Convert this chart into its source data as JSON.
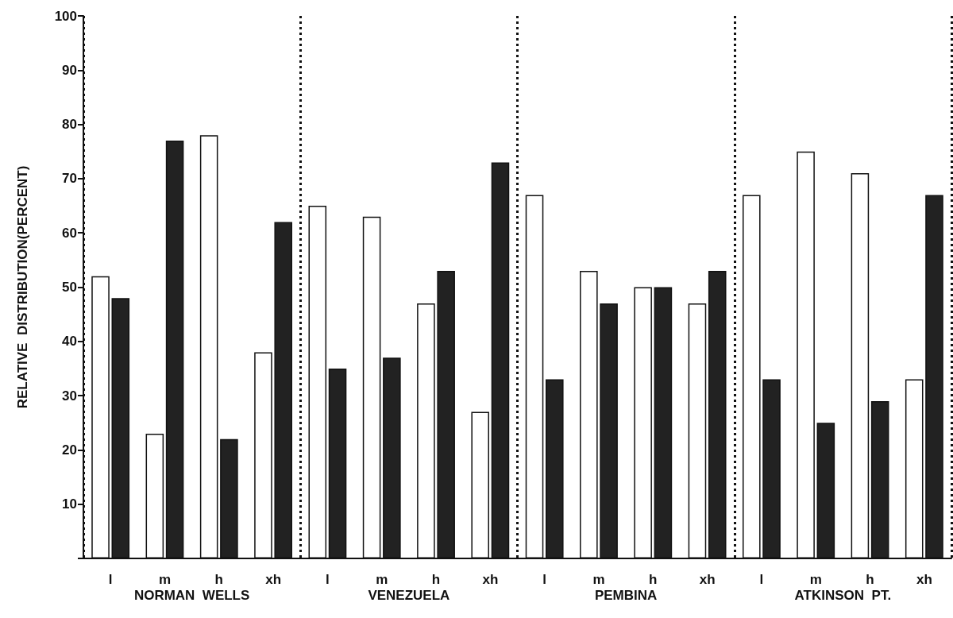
{
  "chart_data": {
    "type": "bar",
    "ylabel": "RELATIVE  DISTRIBUTION(PERCENT)",
    "categories": [
      "l",
      "m",
      "h",
      "xh",
      "l",
      "m",
      "h",
      "xh",
      "l",
      "m",
      "h",
      "xh",
      "l",
      "m",
      "h",
      "xh"
    ],
    "series": [
      {
        "color": "#ffffff",
        "values": [
          52,
          23,
          78,
          38,
          65,
          63,
          47,
          27,
          67,
          53,
          50,
          47,
          67,
          75,
          71,
          33
        ]
      },
      {
        "color": "#222222",
        "values": [
          48,
          77,
          22,
          62,
          35,
          37,
          53,
          73,
          33,
          47,
          50,
          53,
          33,
          25,
          29,
          67
        ]
      }
    ],
    "annotations": [
      "NORMAN  WELLS",
      "VENEZUELA",
      "PEMBINA",
      "ATKINSON  PT."
    ],
    "ylim": [
      0,
      100
    ],
    "yticks": [
      {
        "value": 0,
        "label": null
      },
      10,
      20,
      30,
      40,
      50,
      60,
      70,
      80,
      90,
      100
    ],
    "grid": false
  }
}
